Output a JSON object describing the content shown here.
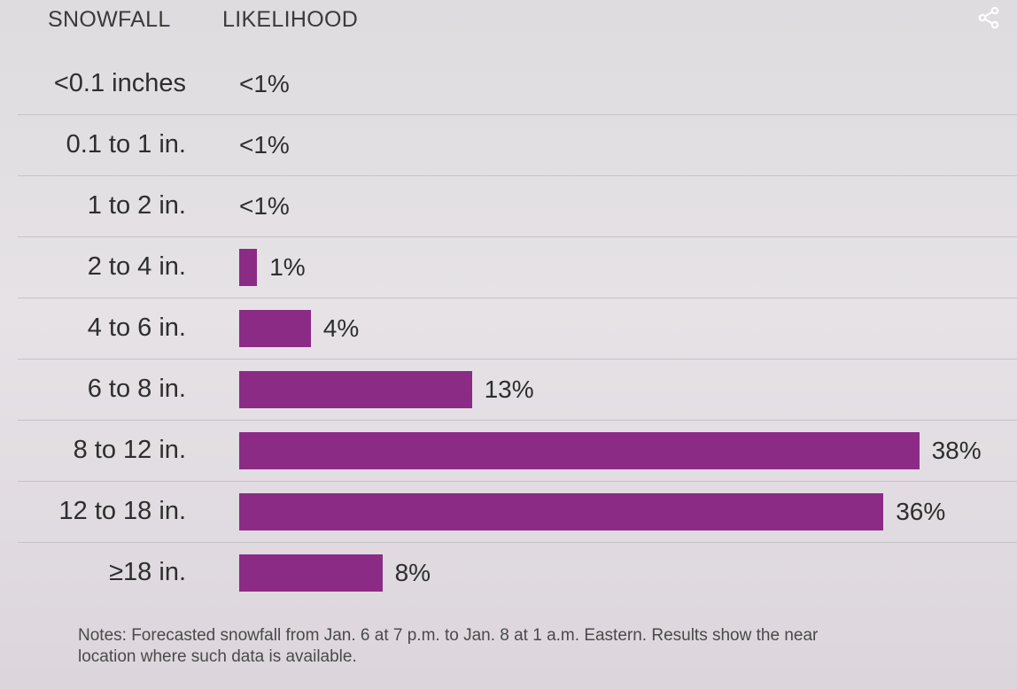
{
  "header": {
    "snowfall_label": "SNOWFALL",
    "likelihood_label": "LIKELIHOOD"
  },
  "share_icon": "share-icon",
  "accent_color": "#8c2b86",
  "chart_data": {
    "type": "bar",
    "orientation": "horizontal",
    "categories": [
      "<0.1 inches",
      "0.1 to 1 in.",
      "1 to 2 in.",
      "2 to 4 in.",
      "4 to 6 in.",
      "6 to 8 in.",
      "8 to 12 in.",
      "12 to 18 in.",
      "≥18 in."
    ],
    "values": [
      0,
      0,
      0,
      1,
      4,
      13,
      38,
      36,
      8
    ],
    "value_labels": [
      "<1%",
      "<1%",
      "<1%",
      "1%",
      "4%",
      "13%",
      "38%",
      "36%",
      "8%"
    ],
    "units": "%"
  },
  "notes": {
    "line1": "Notes: Forecasted snowfall from Jan. 6 at 7 p.m. to Jan. 8 at 1 a.m. Eastern. Results show the near",
    "line2": "location where such data is available."
  }
}
